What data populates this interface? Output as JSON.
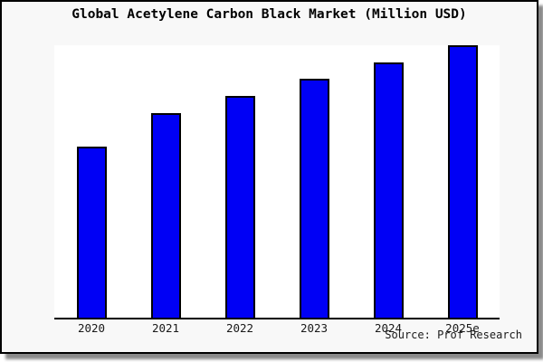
{
  "title": "Global Acetylene Carbon Black Market (Million USD)",
  "source_credit": "Source: Prof Research",
  "colors": {
    "bar_fill": "#0000f5",
    "bar_border": "#000000",
    "card_background": "#f8f8f8",
    "plot_background": "#ffffff",
    "axis": "#000000",
    "text": "#000000"
  },
  "chart_data": {
    "type": "bar",
    "categories": [
      "2020",
      "2021",
      "2022",
      "2023",
      "2024",
      "2025e"
    ],
    "values": [
      189,
      226,
      245,
      264,
      282,
      301
    ],
    "title": "Global Acetylene Carbon Black Market (Million USD)",
    "xlabel": "",
    "ylabel": "",
    "ylim": [
      0,
      301
    ],
    "value_units": "relative height (no y-axis tick labels shown in chart)",
    "grid": false,
    "legend_position": "none",
    "annotations": [
      "Source: Prof Research"
    ]
  }
}
